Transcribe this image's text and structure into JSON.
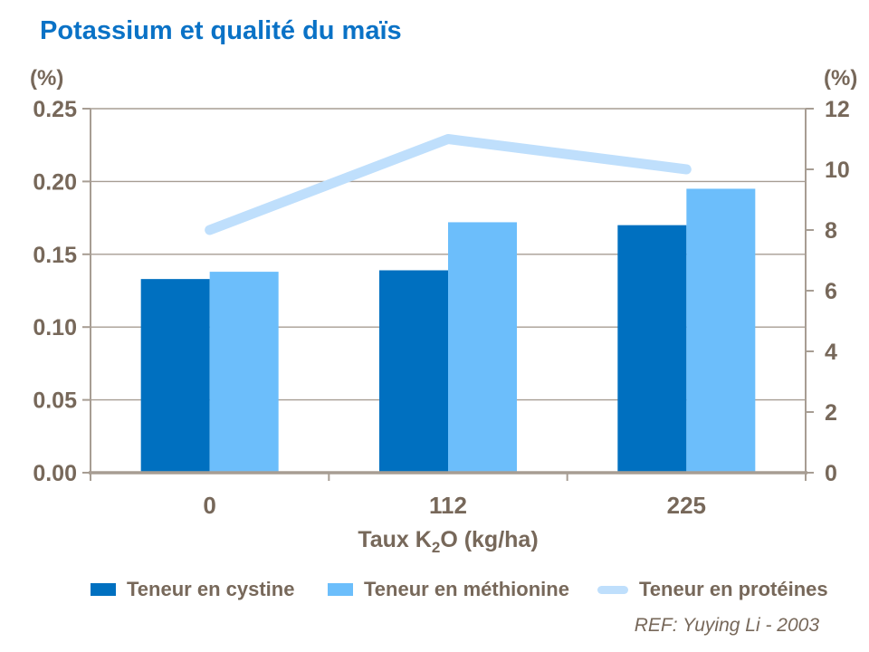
{
  "title": "Potassium et qualité du maïs",
  "reference": "REF: Yuying Li - 2003",
  "colors": {
    "title_blue": "#0A72C6",
    "cystine_blue": "#0070C0",
    "methionine_blue": "#6CBEFB",
    "proteines_blue": "#BFDFFC",
    "axis_line": "#A79D93",
    "text_brown": "#77685A"
  },
  "chart_data": {
    "type": "bar",
    "subtype": "grouped bars with overlay line, dual y-axes",
    "categories": [
      "0",
      "112",
      "225"
    ],
    "x_axis_title": {
      "pre": "Taux K",
      "sub": "2",
      "post": "O (kg/ha)"
    },
    "left_axis": {
      "label": "(%)",
      "min": 0.0,
      "max": 0.25,
      "step": 0.05,
      "tick_labels": [
        "0.25",
        "0.20",
        "0.15",
        "0.10",
        "0.05",
        "0.00"
      ]
    },
    "right_axis": {
      "label": "(%)",
      "min": 0,
      "max": 12,
      "step": 2,
      "tick_labels": [
        "12",
        "10",
        "8",
        "6",
        "4",
        "2",
        "0"
      ]
    },
    "grid": "horizontal gridlines at left-axis steps",
    "legend_position": "bottom",
    "series": [
      {
        "name": "Teneur en cystine",
        "type": "bar",
        "axis": "left",
        "color": "#0070C0",
        "values": [
          0.133,
          0.139,
          0.17
        ]
      },
      {
        "name": "Teneur en méthionine",
        "type": "bar",
        "axis": "left",
        "color": "#6CBEFB",
        "values": [
          0.138,
          0.172,
          0.195
        ]
      },
      {
        "name": "Teneur en protéines",
        "type": "line",
        "axis": "right",
        "color": "#BFDFFC",
        "values": [
          8,
          11,
          10
        ]
      }
    ]
  }
}
